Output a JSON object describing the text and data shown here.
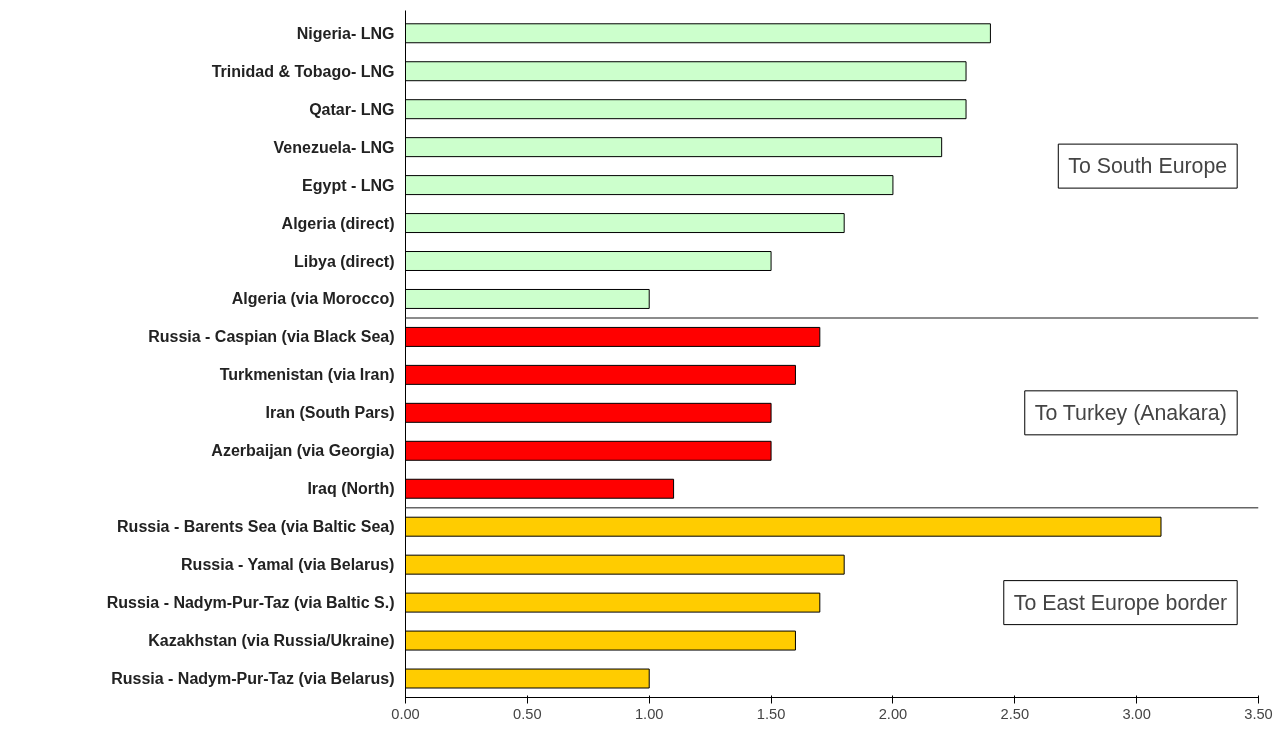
{
  "chart_data": {
    "type": "bar",
    "orientation": "horizontal",
    "categories": [
      "Nigeria- LNG",
      "Trinidad & Tobago- LNG",
      "Qatar- LNG",
      "Venezuela- LNG",
      "Egypt - LNG",
      "Algeria (direct)",
      "Libya (direct)",
      "Algeria (via Morocco)",
      "Russia - Caspian (via Black Sea)",
      "Turkmenistan (via Iran)",
      "Iran (South Pars)",
      "Azerbaijan (via Georgia)",
      "Iraq (North)",
      "Russia - Barents Sea (via Baltic Sea)",
      "Russia - Yamal (via Belarus)",
      "Russia - Nadym-Pur-Taz (via Baltic S.)",
      "Kazakhstan (via Russia/Ukraine)",
      "Russia - Nadym-Pur-Taz (via Belarus)"
    ],
    "values": [
      2.4,
      2.3,
      2.3,
      2.2,
      2.0,
      1.8,
      1.5,
      1.0,
      1.7,
      1.6,
      1.5,
      1.5,
      1.1,
      3.1,
      1.8,
      1.7,
      1.6,
      1.0
    ],
    "colors": [
      "#ccffcc",
      "#ccffcc",
      "#ccffcc",
      "#ccffcc",
      "#ccffcc",
      "#ccffcc",
      "#ccffcc",
      "#ccffcc",
      "#ff0000",
      "#ff0000",
      "#ff0000",
      "#ff0000",
      "#ff0000",
      "#ffcc00",
      "#ffcc00",
      "#ffcc00",
      "#ffcc00",
      "#ffcc00"
    ],
    "xlim": [
      0,
      3.5
    ],
    "xticks": [
      {
        "value": 0,
        "label": "0.00"
      },
      {
        "value": 0.5,
        "label": "0.50"
      },
      {
        "value": 1,
        "label": "1.00"
      },
      {
        "value": 1.5,
        "label": "1.50"
      },
      {
        "value": 2,
        "label": "2.00"
      },
      {
        "value": 2.5,
        "label": "2.50"
      },
      {
        "value": 3,
        "label": "3.00"
      },
      {
        "value": 3.5,
        "label": "3.50"
      }
    ],
    "annotations": [
      "To South Europe",
      "To Turkey (Anakara)",
      "To East Europe border"
    ],
    "grid": false
  }
}
